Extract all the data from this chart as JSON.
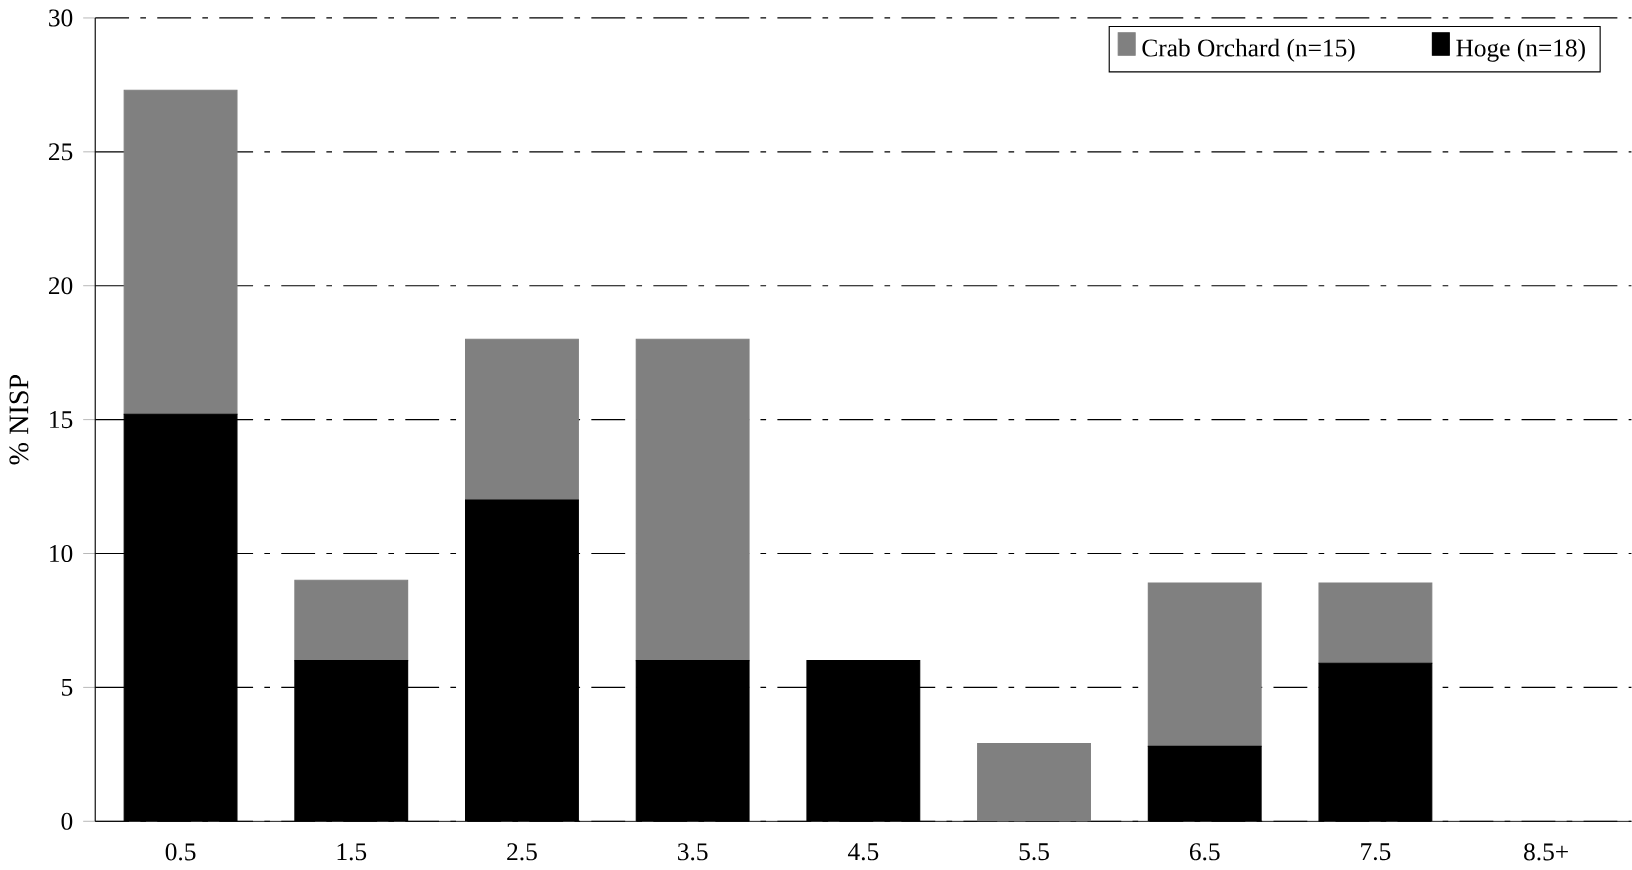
{
  "chart_data": {
    "type": "bar",
    "stacked": true,
    "ylabel": "% NISP",
    "categories": [
      "0.5",
      "1.5",
      "2.5",
      "3.5",
      "4.5",
      "5.5",
      "6.5",
      "7.5",
      "8.5+"
    ],
    "series": [
      {
        "name": "Hoge (n=18)",
        "color": "#000000",
        "values": [
          15.2,
          6,
          12,
          6,
          6,
          0,
          2.8,
          5.9,
          null
        ]
      },
      {
        "name": "Crab Orchard (n=15)",
        "color": "#808080",
        "values": [
          12.1,
          3,
          6,
          12,
          0,
          2.9,
          6.1,
          3,
          null
        ]
      }
    ],
    "ylim": [
      0,
      30
    ],
    "yticks": [
      0,
      5,
      10,
      15,
      20,
      25,
      30
    ],
    "grid": "y",
    "legend": "top right"
  }
}
